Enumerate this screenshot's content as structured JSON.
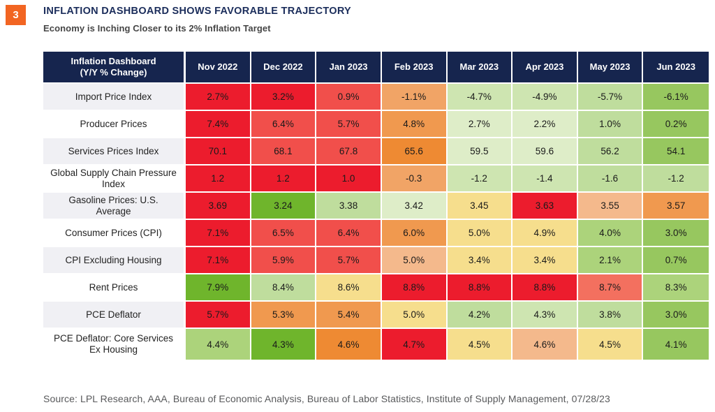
{
  "page": {
    "badge": "3",
    "title": "INFLATION DASHBOARD SHOWS FAVORABLE TRAJECTORY",
    "subtitle": "Economy is Inching Closer to its 2% Inflation Target",
    "source": "Source: LPL Research, AAA, Bureau of Economic Analysis, Bureau of Labor Statistics, Institute of Supply Management,  07/28/23"
  },
  "colors": {
    "header_navy": "#16254E",
    "title_navy": "#1B2D5B",
    "badge_orange": "#F26522",
    "row_label_alt_bg": "#F0F0F4"
  },
  "chart_data": {
    "type": "heatmap",
    "title": "INFLATION DASHBOARD SHOWS FAVORABLE TRAJECTORY",
    "subtitle": "Economy is Inching Closer to its 2% Inflation Target",
    "corner_label": "Inflation Dashboard\n(Y/Y % Change)",
    "columns": [
      "Nov 2022",
      "Dec 2022",
      "Jan 2023",
      "Feb 2023",
      "Mar 2023",
      "Apr 2023",
      "May 2023",
      "Jun 2023"
    ],
    "palette": {
      "r1": "#EC1C2D",
      "r2": "#F14F4B",
      "r3": "#F3705F",
      "o1": "#EE8A33",
      "o2": "#F0994F",
      "o3": "#F1A466",
      "sa": "#F4B98C",
      "ye": "#F6DE8D",
      "g1": "#DEEDC8",
      "g2": "#CEE5B1",
      "g3": "#BFDD9D",
      "g4": "#ACD37B",
      "g5": "#97C75F",
      "g6": "#6FB52C"
    },
    "rows": [
      {
        "label": "Import Price Index",
        "values": [
          "2.7%",
          "3.2%",
          "0.9%",
          "-1.1%",
          "-4.7%",
          "-4.9%",
          "-5.7%",
          "-6.1%"
        ],
        "colors": [
          "r1",
          "r1",
          "r2",
          "o3",
          "g2",
          "g2",
          "g3",
          "g5"
        ]
      },
      {
        "label": "Producer Prices",
        "values": [
          "7.4%",
          "6.4%",
          "5.7%",
          "4.8%",
          "2.7%",
          "2.2%",
          "1.0%",
          "0.2%"
        ],
        "colors": [
          "r1",
          "r2",
          "r2",
          "o2",
          "g1",
          "g1",
          "g3",
          "g5"
        ]
      },
      {
        "label": "Services Prices Index",
        "values": [
          "70.1",
          "68.1",
          "67.8",
          "65.6",
          "59.5",
          "59.6",
          "56.2",
          "54.1"
        ],
        "colors": [
          "r1",
          "r2",
          "r2",
          "o1",
          "g1",
          "g1",
          "g3",
          "g5"
        ]
      },
      {
        "label": "Global Supply Chain Pressure Index",
        "values": [
          "1.2",
          "1.2",
          "1.0",
          "-0.3",
          "-1.2",
          "-1.4",
          "-1.6",
          "-1.2"
        ],
        "colors": [
          "r1",
          "r1",
          "r1",
          "o3",
          "g2",
          "g2",
          "g3",
          "g3"
        ]
      },
      {
        "label": "Gasoline Prices: U.S. Average",
        "values": [
          "3.69",
          "3.24",
          "3.38",
          "3.42",
          "3.45",
          "3.63",
          "3.55",
          "3.57"
        ],
        "colors": [
          "r1",
          "g6",
          "g3",
          "g1",
          "ye",
          "r1",
          "sa",
          "o2"
        ]
      },
      {
        "label": "Consumer Prices  (CPI)",
        "values": [
          "7.1%",
          "6.5%",
          "6.4%",
          "6.0%",
          "5.0%",
          "4.9%",
          "4.0%",
          "3.0%"
        ],
        "colors": [
          "r1",
          "r2",
          "r2",
          "o2",
          "ye",
          "ye",
          "g4",
          "g5"
        ]
      },
      {
        "label": "CPI Excluding Housing",
        "values": [
          "7.1%",
          "5.9%",
          "5.7%",
          "5.0%",
          "3.4%",
          "3.4%",
          "2.1%",
          "0.7%"
        ],
        "colors": [
          "r1",
          "r2",
          "r2",
          "sa",
          "ye",
          "ye",
          "g4",
          "g5"
        ]
      },
      {
        "label": "Rent Prices",
        "values": [
          "7.9%",
          "8.4%",
          "8.6%",
          "8.8%",
          "8.8%",
          "8.8%",
          "8.7%",
          "8.3%"
        ],
        "colors": [
          "g6",
          "g3",
          "ye",
          "r1",
          "r1",
          "r1",
          "r3",
          "g4"
        ]
      },
      {
        "label": "PCE Deflator",
        "values": [
          "5.7%",
          "5.3%",
          "5.4%",
          "5.0%",
          "4.2%",
          "4.3%",
          "3.8%",
          "3.0%"
        ],
        "colors": [
          "r1",
          "o2",
          "o2",
          "ye",
          "g3",
          "g2",
          "g3",
          "g5"
        ]
      },
      {
        "label": "PCE Deflator: Core Services Ex Housing",
        "values": [
          "4.4%",
          "4.3%",
          "4.6%",
          "4.7%",
          "4.5%",
          "4.6%",
          "4.5%",
          "4.1%"
        ],
        "colors": [
          "g4",
          "g6",
          "o1",
          "r1",
          "ye",
          "sa",
          "ye",
          "g5"
        ]
      }
    ]
  }
}
